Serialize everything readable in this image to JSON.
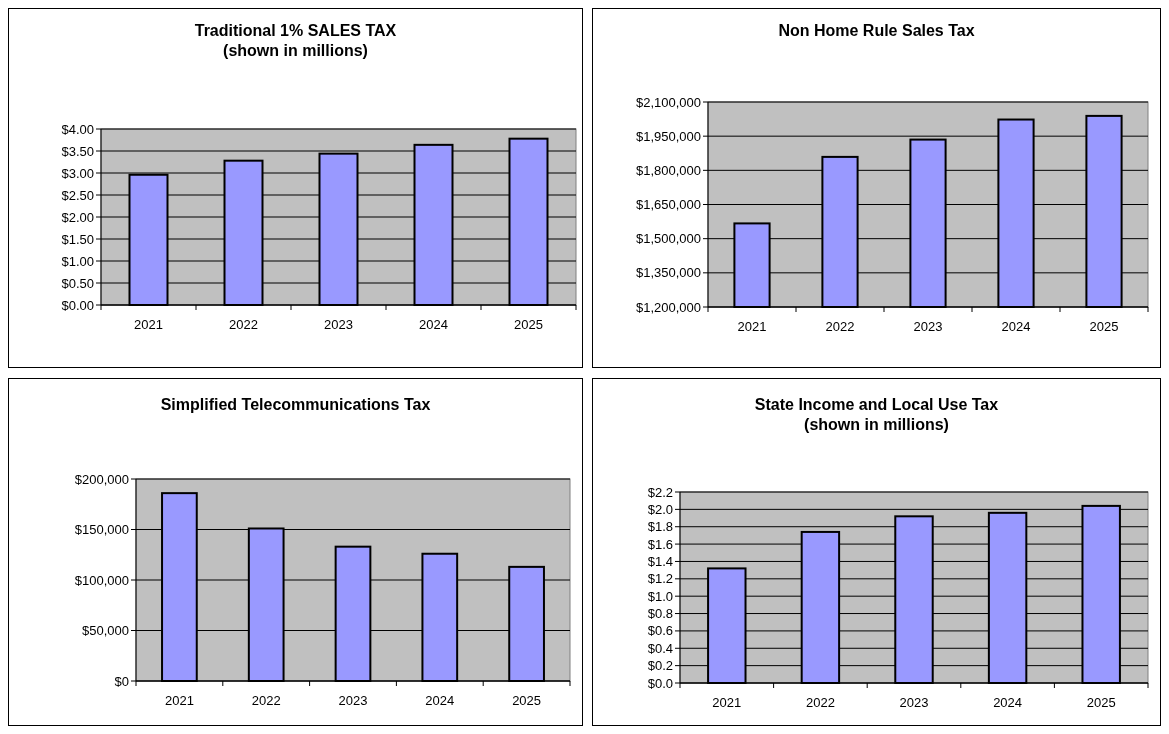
{
  "chart_data": [
    {
      "type": "bar",
      "title": "Traditional 1% SALES TAX",
      "subtitle": "(shown in millions)",
      "categories": [
        "2021",
        "2022",
        "2023",
        "2024",
        "2025"
      ],
      "values": [
        2.96,
        3.28,
        3.44,
        3.64,
        3.78
      ],
      "color": "#9999ff",
      "ylim": [
        0,
        4
      ],
      "yticks": [
        {
          "value": 0,
          "label": "$0.00"
        },
        {
          "value": 0.5,
          "label": "$0.50"
        },
        {
          "value": 1,
          "label": "$1.00"
        },
        {
          "value": 1.5,
          "label": "$1.50"
        },
        {
          "value": 2,
          "label": "$2.00"
        },
        {
          "value": 2.5,
          "label": "$2.50"
        },
        {
          "value": 3,
          "label": "$3.00"
        },
        {
          "value": 3.5,
          "label": "$3.50"
        },
        {
          "value": 4,
          "label": "$4.00"
        }
      ],
      "grid": "y"
    },
    {
      "type": "bar",
      "title": "Non Home Rule Sales Tax",
      "categories": [
        "2021",
        "2022",
        "2023",
        "2024",
        "2025"
      ],
      "values": [
        1567000,
        1859000,
        1935000,
        2023000,
        2039000
      ],
      "color": "#9999ff",
      "ylim": [
        1200000,
        2100000
      ],
      "yticks": [
        {
          "value": 1200000,
          "label": "$1,200,000"
        },
        {
          "value": 1350000,
          "label": "$1,350,000"
        },
        {
          "value": 1500000,
          "label": "$1,500,000"
        },
        {
          "value": 1650000,
          "label": "$1,650,000"
        },
        {
          "value": 1800000,
          "label": "$1,800,000"
        },
        {
          "value": 1950000,
          "label": "$1,950,000"
        },
        {
          "value": 2100000,
          "label": "$2,100,000"
        }
      ],
      "grid": "y"
    },
    {
      "type": "bar",
      "title": "Simplified  Telecommunications  Tax",
      "categories": [
        "2021",
        "2022",
        "2023",
        "2024",
        "2025"
      ],
      "values": [
        186000,
        151000,
        133000,
        126000,
        113000
      ],
      "color": "#9999ff",
      "ylim": [
        0,
        200000
      ],
      "yticks": [
        {
          "value": 0,
          "label": "$0"
        },
        {
          "value": 50000,
          "label": "$50,000"
        },
        {
          "value": 100000,
          "label": "$100,000"
        },
        {
          "value": 150000,
          "label": "$150,000"
        },
        {
          "value": 200000,
          "label": "$200,000"
        }
      ],
      "grid": "y"
    },
    {
      "type": "bar",
      "title": "State Income and Local Use Tax",
      "subtitle": "(shown in millions)",
      "categories": [
        "2021",
        "2022",
        "2023",
        "2024",
        "2025"
      ],
      "values": [
        1.32,
        1.74,
        1.92,
        1.96,
        2.04
      ],
      "color": "#9999ff",
      "ylim": [
        0,
        2.2
      ],
      "yticks": [
        {
          "value": 0,
          "label": "$0.0"
        },
        {
          "value": 0.2,
          "label": "$0.2"
        },
        {
          "value": 0.4,
          "label": "$0.4"
        },
        {
          "value": 0.6,
          "label": "$0.6"
        },
        {
          "value": 0.8,
          "label": "$0.8"
        },
        {
          "value": 1,
          "label": "$1.0"
        },
        {
          "value": 1.2,
          "label": "$1.2"
        },
        {
          "value": 1.4,
          "label": "$1.4"
        },
        {
          "value": 1.6,
          "label": "$1.6"
        },
        {
          "value": 1.8,
          "label": "$1.8"
        },
        {
          "value": 2,
          "label": "$2.0"
        },
        {
          "value": 2.2,
          "label": "$2.2"
        }
      ],
      "grid": "y"
    }
  ]
}
